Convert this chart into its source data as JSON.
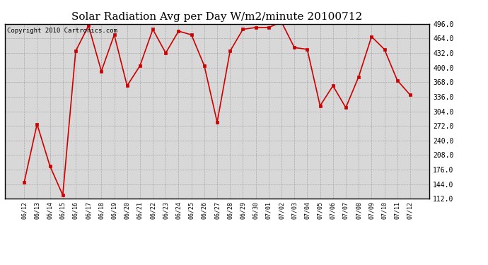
{
  "title": "Solar Radiation Avg per Day W/m2/minute 20100712",
  "copyright_text": "Copyright 2010 Cartronics.com",
  "dates": [
    "06/12",
    "06/13",
    "06/14",
    "06/15",
    "06/16",
    "06/17",
    "06/18",
    "06/19",
    "06/20",
    "06/21",
    "06/22",
    "06/23",
    "06/24",
    "06/25",
    "06/26",
    "06/27",
    "06/28",
    "06/29",
    "06/30",
    "07/01",
    "07/02",
    "07/03",
    "07/04",
    "07/05",
    "07/06",
    "07/07",
    "07/08",
    "07/09",
    "07/10",
    "07/11",
    "07/12"
  ],
  "values": [
    148,
    276,
    184,
    120,
    436,
    492,
    392,
    472,
    360,
    404,
    484,
    432,
    480,
    472,
    404,
    280,
    436,
    484,
    488,
    488,
    500,
    444,
    440,
    316,
    360,
    312,
    380,
    468,
    440,
    372,
    340
  ],
  "y_ticks": [
    112.0,
    144.0,
    176.0,
    208.0,
    240.0,
    272.0,
    304.0,
    336.0,
    368.0,
    400.0,
    432.0,
    464.0,
    496.0
  ],
  "ylim": [
    112.0,
    496.0
  ],
  "line_color": "#cc0000",
  "marker_color": "#cc0000",
  "bg_color": "#ffffff",
  "plot_bg_color": "#d8d8d8",
  "grid_color": "#aaaaaa",
  "title_fontsize": 11,
  "copyright_fontsize": 6.5
}
